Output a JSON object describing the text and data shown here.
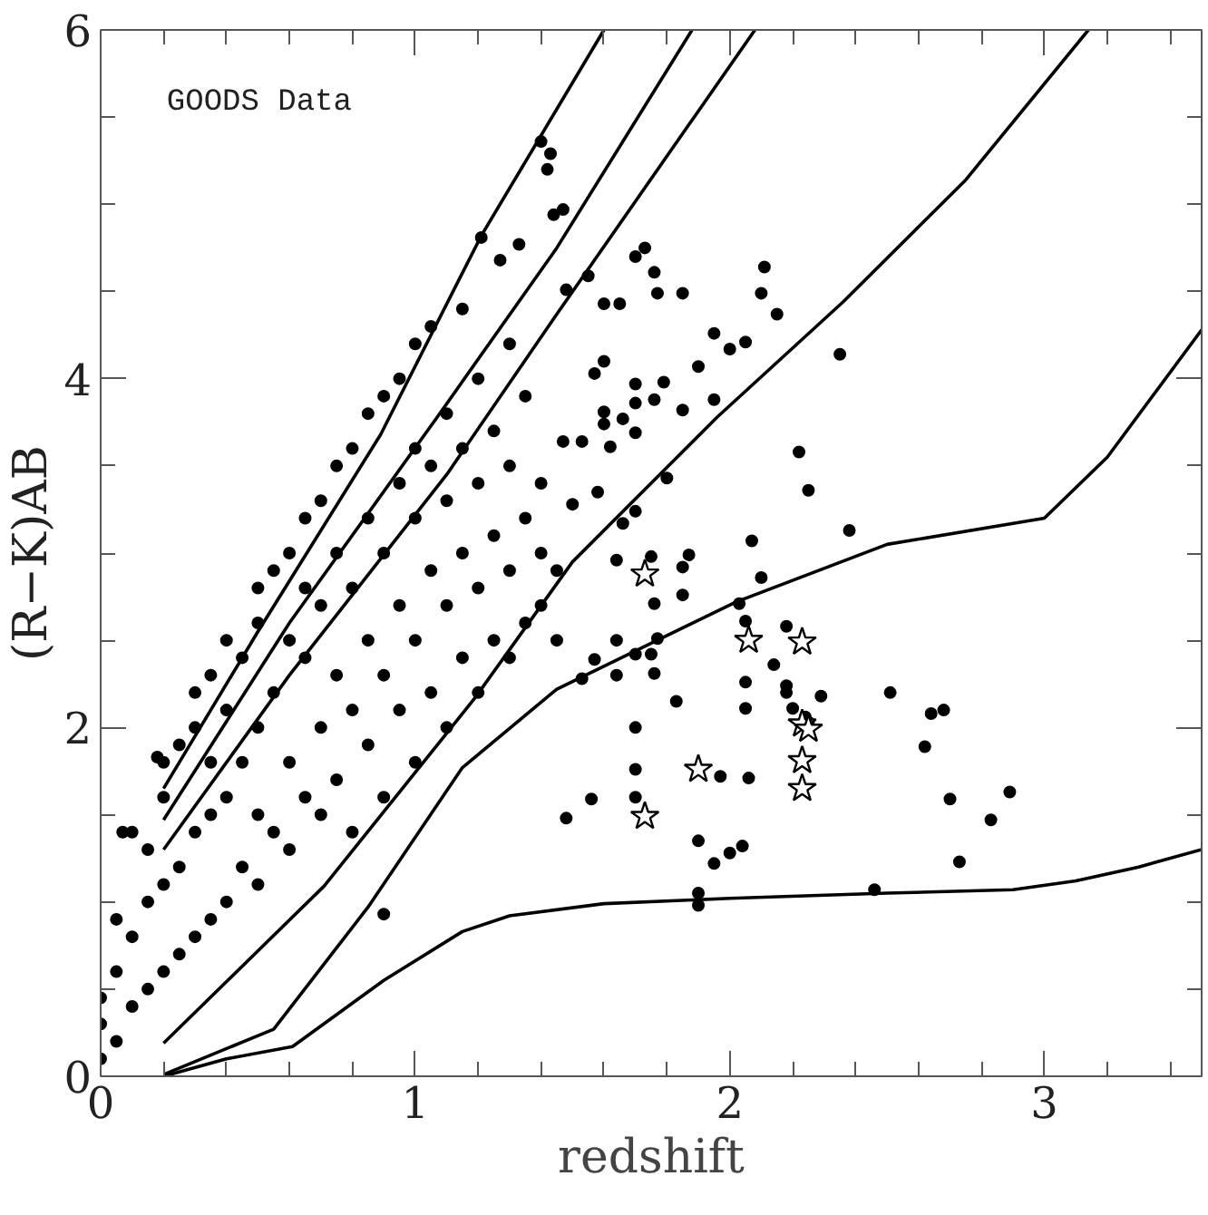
{
  "chart_data": {
    "type": "scatter",
    "xlabel": "redshift",
    "ylabel": "(R−K)AB",
    "annotations": [
      "GOODS Data"
    ],
    "xlim": [
      0,
      3.5
    ],
    "ylim": [
      0,
      6
    ],
    "xticks": [
      0,
      {
        "value": 0.2,
        "label": null
      },
      {
        "value": 0.4,
        "label": null
      },
      {
        "value": 0.6,
        "label": null
      },
      {
        "value": 0.8,
        "label": null
      },
      1,
      {
        "value": 1.2,
        "label": null
      },
      {
        "value": 1.4,
        "label": null
      },
      {
        "value": 1.6,
        "label": null
      },
      {
        "value": 1.8,
        "label": null
      },
      2,
      {
        "value": 2.2,
        "label": null
      },
      {
        "value": 2.4,
        "label": null
      },
      {
        "value": 2.6,
        "label": null
      },
      {
        "value": 2.8,
        "label": null
      },
      3,
      {
        "value": 3.2,
        "label": null
      },
      {
        "value": 3.4,
        "label": null
      }
    ],
    "yticks": [
      0,
      {
        "value": 0.5,
        "label": null
      },
      {
        "value": 1,
        "label": null
      },
      {
        "value": 1.5,
        "label": null
      },
      2,
      {
        "value": 2.5,
        "label": null
      },
      {
        "value": 3,
        "label": null
      },
      {
        "value": 3.5,
        "label": null
      },
      4,
      {
        "value": 4.5,
        "label": null
      },
      {
        "value": 5,
        "label": null
      },
      {
        "value": 5.5,
        "label": null
      },
      6
    ],
    "series": [
      {
        "type": "scatter",
        "marker": "circle",
        "color": "#000000",
        "x": [
          0,
          0,
          0,
          0.05,
          0.05,
          0.05,
          0.1,
          0.1,
          0.1,
          0.15,
          0.15,
          0.15,
          0.2,
          0.2,
          0.2,
          0.2,
          0.25,
          0.25,
          0.25,
          0.3,
          0.3,
          0.3,
          0.3,
          0.35,
          0.35,
          0.35,
          0.35,
          0.4,
          0.4,
          0.4,
          0.4,
          0.45,
          0.45,
          0.45,
          0.5,
          0.5,
          0.5,
          0.5,
          0.5,
          0.55,
          0.55,
          0.55,
          0.6,
          0.6,
          0.6,
          0.6,
          0.65,
          0.65,
          0.65,
          0.65,
          0.7,
          0.7,
          0.7,
          0.7,
          0.75,
          0.75,
          0.75,
          0.75,
          0.8,
          0.8,
          0.8,
          0.8,
          0.85,
          0.85,
          0.85,
          0.85,
          0.9,
          0.9,
          0.9,
          0.9,
          0.9,
          0.95,
          0.95,
          0.95,
          0.95,
          1,
          1,
          1,
          1,
          1,
          1.05,
          1.05,
          1.05,
          1.05,
          1.1,
          1.1,
          1.1,
          1.1,
          1.15,
          1.15,
          1.15,
          1.15,
          1.2,
          1.2,
          1.2,
          1.2,
          1.25,
          1.25,
          1.25,
          1.3,
          1.3,
          1.3,
          1.3,
          1.35,
          1.35,
          1.35,
          1.4,
          1.4,
          1.4,
          1.45,
          1.45,
          0.07,
          0.18,
          1.4,
          1.43,
          1.42,
          1.44,
          1.33,
          1.21,
          1.27,
          1.47,
          1.73,
          1.7,
          1.76,
          1.77,
          1.85,
          2.11,
          2.1,
          2.15,
          1.95,
          2,
          2.05,
          2.35,
          1.9,
          1.79,
          1.7,
          1.7,
          1.76,
          1.85,
          1.95,
          1.6,
          1.6,
          1.66,
          1.7,
          1.53,
          1.62,
          1.47,
          1.8,
          2.22,
          2.25,
          2.38,
          2.07,
          1.58,
          1.5,
          1.66,
          1.7,
          1.55,
          1.48,
          1.6,
          1.65,
          1.57,
          1.6,
          1.64,
          1.75,
          1.87,
          1.85,
          1.85,
          1.76,
          2.1,
          2.03,
          2.05,
          2.18,
          2.14,
          2.05,
          2.18,
          2.18,
          2.29,
          2.2,
          2.05,
          2.51,
          2.64,
          2.68,
          2.62,
          2.7,
          2.89,
          2.83,
          2.73,
          2.46,
          1.9,
          1.9,
          1.9,
          1.95,
          2,
          2.04,
          1.97,
          2.06,
          1.7,
          1.7,
          1.7,
          1.83,
          1.56,
          1.48,
          2.24,
          2.25,
          1.7,
          1.75,
          1.76,
          1.64,
          1.57,
          1.64,
          1.53,
          1.77
        ],
        "values": [
          0.1,
          0.3,
          0.45,
          0.2,
          0.6,
          0.9,
          0.4,
          0.8,
          1.4,
          0.5,
          1,
          1.3,
          0.6,
          1.1,
          1.6,
          1.8,
          0.7,
          1.2,
          1.9,
          0.8,
          1.4,
          2,
          2.2,
          0.9,
          1.5,
          1.8,
          2.3,
          1,
          1.6,
          2.1,
          2.5,
          1.2,
          1.8,
          2.4,
          1.1,
          1.5,
          2,
          2.6,
          2.8,
          1.4,
          2.2,
          2.9,
          1.3,
          1.8,
          2.5,
          3,
          1.6,
          2.4,
          2.8,
          3.2,
          1.5,
          2,
          2.7,
          3.3,
          1.7,
          2.3,
          3,
          3.5,
          1.4,
          2.1,
          2.8,
          3.6,
          1.9,
          2.5,
          3.2,
          3.8,
          0.93,
          1.6,
          2.3,
          3,
          3.9,
          2.1,
          2.7,
          3.4,
          4,
          1.8,
          2.5,
          3.2,
          3.6,
          4.2,
          2.2,
          2.9,
          3.5,
          4.3,
          2,
          2.7,
          3.3,
          3.8,
          2.4,
          3,
          3.6,
          4.4,
          2.2,
          2.8,
          3.4,
          4,
          2.5,
          3.1,
          3.7,
          2.4,
          2.9,
          3.5,
          4.2,
          2.6,
          3.2,
          3.9,
          2.7,
          3,
          3.4,
          2.5,
          2.9,
          1.4,
          1.83,
          5.36,
          5.29,
          5.2,
          4.94,
          4.77,
          4.81,
          4.68,
          4.97,
          4.75,
          4.7,
          4.61,
          4.49,
          4.49,
          4.64,
          4.49,
          4.37,
          4.26,
          4.17,
          4.21,
          4.14,
          4.07,
          3.98,
          3.97,
          3.86,
          3.88,
          3.82,
          3.88,
          3.81,
          3.74,
          3.77,
          3.69,
          3.64,
          3.61,
          3.64,
          3.43,
          3.58,
          3.36,
          3.13,
          3.07,
          3.35,
          3.28,
          3.17,
          3.24,
          4.59,
          4.51,
          4.43,
          4.43,
          4.03,
          4.1,
          2.96,
          2.98,
          2.99,
          2.92,
          2.76,
          2.71,
          2.86,
          2.71,
          2.61,
          2.58,
          2.36,
          2.26,
          2.24,
          2.2,
          2.18,
          2.11,
          2.11,
          2.2,
          2.08,
          2.1,
          1.89,
          1.59,
          1.63,
          1.47,
          1.23,
          1.07,
          1.05,
          0.98,
          1.35,
          1.22,
          1.28,
          1.32,
          1.72,
          1.71,
          2,
          1.76,
          1.6,
          2.15,
          1.59,
          1.48,
          2.06,
          2.03,
          2.42,
          2.42,
          2.31,
          2.3,
          2.39,
          2.5,
          2.28,
          2.51
        ]
      },
      {
        "type": "scatter",
        "marker": "star",
        "color": "#000000",
        "x": [
          1.73,
          2.06,
          2.23,
          2.23,
          2.25,
          1.9,
          2.23,
          2.23,
          1.73
        ],
        "values": [
          2.88,
          2.5,
          2.49,
          2.02,
          1.99,
          1.76,
          1.81,
          1.65,
          1.49
        ]
      },
      {
        "type": "line",
        "color": "#000000",
        "x": [
          0.2,
          0.5,
          0.89,
          1.21,
          1.6
        ],
        "values": [
          1.65,
          2.55,
          3.68,
          4.82,
          6
        ]
      },
      {
        "type": "line",
        "color": "#000000",
        "x": [
          0.2,
          0.6,
          1.07,
          1.45,
          1.88
        ],
        "values": [
          1.47,
          2.6,
          3.78,
          4.75,
          6
        ]
      },
      {
        "type": "line",
        "color": "#000000",
        "x": [
          0.2,
          0.6,
          1.1,
          1.45,
          2.08
        ],
        "values": [
          1.3,
          2.3,
          3.45,
          4.37,
          6
        ]
      },
      {
        "type": "line",
        "color": "#000000",
        "x": [
          0.2,
          0.71,
          1.19,
          1.5,
          1.96,
          2.36,
          2.75,
          3.14
        ],
        "values": [
          0.19,
          1.09,
          2.17,
          2.95,
          3.78,
          4.44,
          5.14,
          6
        ]
      },
      {
        "type": "line",
        "color": "#000000",
        "x": [
          0.2,
          0.55,
          0.85,
          1.15,
          1.45,
          2.02,
          2.5,
          3,
          3.2,
          3.5
        ],
        "values": [
          0.01,
          0.27,
          0.97,
          1.77,
          2.22,
          2.72,
          3.05,
          3.2,
          3.55,
          4.28
        ]
      },
      {
        "type": "line",
        "color": "#000000",
        "x": [
          0.2,
          0.4,
          0.61,
          0.9,
          1.15,
          1.3,
          1.6,
          2,
          2.5,
          2.9,
          3.1,
          3.3,
          3.5
        ],
        "values": [
          0,
          0.1,
          0.17,
          0.55,
          0.83,
          0.92,
          0.99,
          1.02,
          1.05,
          1.07,
          1.12,
          1.2,
          1.3
        ]
      }
    ]
  }
}
